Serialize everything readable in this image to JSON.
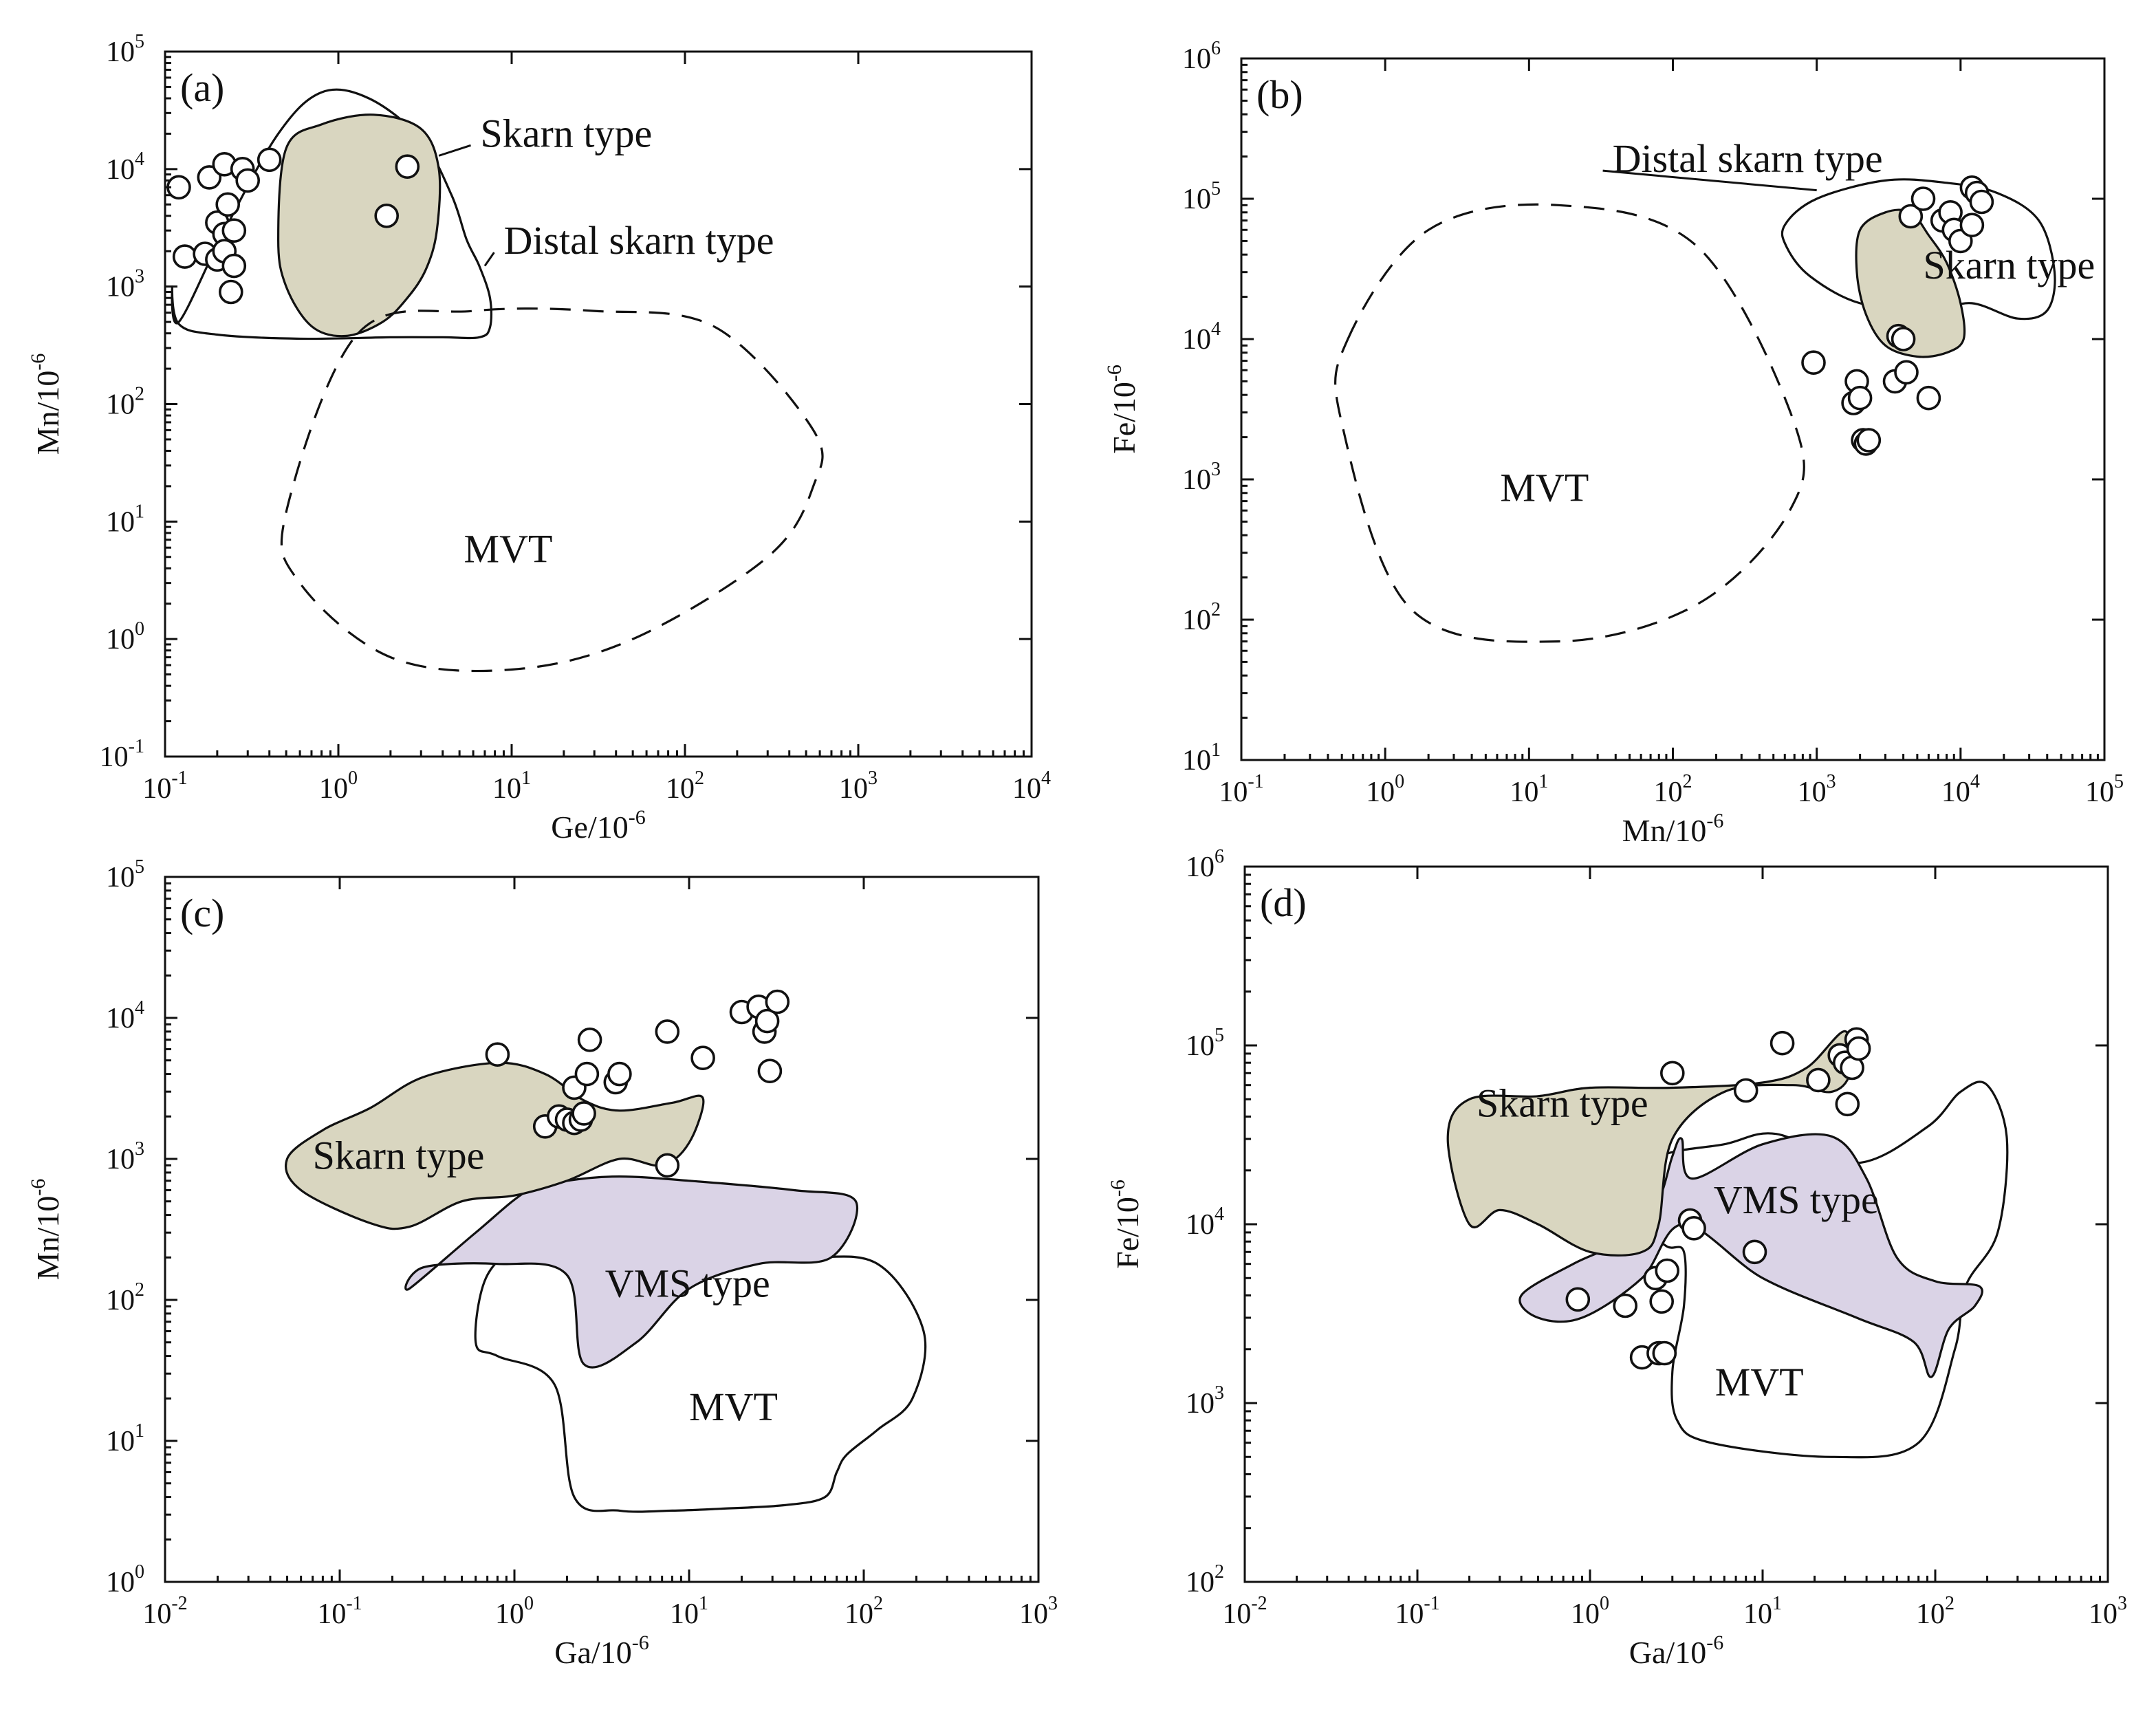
{
  "colors": {
    "skarn_fill": "#d9d6c0",
    "vms_fill": "#dad3e6",
    "line": "#111111",
    "background": "#ffffff"
  },
  "chart_data": [
    {
      "id": "a",
      "type": "scatter",
      "panel_label": "(a)",
      "xlabel": "Ge/10",
      "xlabel_exp": "-6",
      "ylabel": "Mn/10",
      "ylabel_exp": "-6",
      "xscale": "log",
      "yscale": "log",
      "xlim": [
        0.1,
        10000
      ],
      "ylim": [
        0.1,
        100000
      ],
      "x_ticks_exp": [
        -1,
        0,
        1,
        2,
        3,
        4
      ],
      "y_ticks_exp": [
        -1,
        0,
        1,
        2,
        3,
        4,
        5
      ],
      "regions": [
        {
          "name": "Distal skarn type",
          "style": "solid",
          "fill": "none",
          "x": [
            0.12,
            0.22,
            0.45,
            0.8,
            1.5,
            3,
            4.5,
            5.5,
            6.5,
            7.5,
            7.5,
            6.5,
            4,
            2,
            0.6,
            0.2,
            0.12,
            0.11,
            0.12
          ],
          "y": [
            500,
            3000,
            20000,
            45000,
            40000,
            18000,
            6000,
            2500,
            1500,
            800,
            450,
            370,
            370,
            370,
            360,
            390,
            480,
            1000,
            500
          ]
        },
        {
          "name": "Skarn type",
          "style": "solid",
          "fill": "skarn",
          "x": [
            0.5,
            0.8,
            1.6,
            3,
            3.8,
            3.7,
            3.2,
            2.5,
            1.8,
            1.1,
            0.7,
            0.5,
            0.45,
            0.5
          ],
          "y": [
            15000,
            24000,
            29000,
            22000,
            10000,
            3000,
            1400,
            800,
            500,
            380,
            460,
            1000,
            2500,
            15000
          ]
        },
        {
          "name": "MVT",
          "style": "dashed",
          "fill": "none",
          "x": [
            1.3,
            6,
            30,
            150,
            550,
            550,
            300,
            50,
            10,
            2,
            0.6,
            0.5,
            1.3
          ],
          "y": [
            400,
            620,
            620,
            450,
            60,
            20,
            5,
            1,
            0.55,
            0.7,
            3,
            12,
            400
          ]
        }
      ],
      "labels": [
        {
          "text": "Skarn type",
          "x": 6.6,
          "y": 15500,
          "leader_to": [
            3.8,
            13000
          ]
        },
        {
          "text": "Distal skarn type",
          "x": 9.0,
          "y": 1900,
          "leader_to": [
            7.0,
            1500
          ]
        },
        {
          "text": "MVT",
          "x": 5.3,
          "y": 4.5
        }
      ],
      "points": [
        [
          0.12,
          7000
        ],
        [
          0.13,
          1800
        ],
        [
          0.17,
          1900
        ],
        [
          0.18,
          8500
        ],
        [
          0.2,
          3500
        ],
        [
          0.2,
          1700
        ],
        [
          0.22,
          2800
        ],
        [
          0.22,
          11000
        ],
        [
          0.22,
          2000
        ],
        [
          0.23,
          5000
        ],
        [
          0.24,
          900
        ],
        [
          0.25,
          1500
        ],
        [
          0.25,
          3000
        ],
        [
          0.28,
          10000
        ],
        [
          0.3,
          8000
        ],
        [
          0.4,
          12000
        ],
        [
          1.9,
          4000
        ],
        [
          2.5,
          10500
        ]
      ]
    },
    {
      "id": "b",
      "type": "scatter",
      "panel_label": "(b)",
      "xlabel": "Mn/10",
      "xlabel_exp": "-6",
      "ylabel": "Fe/10",
      "ylabel_exp": "-6",
      "xscale": "log",
      "yscale": "log",
      "xlim": [
        0.1,
        100000
      ],
      "ylim": [
        10,
        1000000
      ],
      "x_ticks_exp": [
        -1,
        0,
        1,
        2,
        3,
        4,
        5
      ],
      "y_ticks_exp": [
        1,
        2,
        3,
        4,
        5,
        6
      ],
      "regions": [
        {
          "name": "Distal skarn type",
          "style": "solid",
          "fill": "none",
          "x": [
            600,
            1000,
            3000,
            8000,
            18000,
            35000,
            45000,
            40000,
            25000,
            12000,
            6000,
            2000,
            900,
            620,
            600
          ],
          "y": [
            65000,
            100000,
            135000,
            130000,
            110000,
            70000,
            30000,
            16000,
            14000,
            18000,
            16000,
            18000,
            28000,
            45000,
            65000
          ]
        },
        {
          "name": "Skarn type",
          "style": "solid",
          "fill": "skarn",
          "x": [
            2000,
            3000,
            4500,
            6000,
            8000,
            10000,
            10500,
            8000,
            5000,
            3000,
            2200,
            1900,
            2000
          ],
          "y": [
            60000,
            80000,
            80000,
            55000,
            35000,
            18000,
            10000,
            8000,
            7500,
            9000,
            15000,
            30000,
            60000
          ]
        },
        {
          "name": "MVT",
          "style": "dashed",
          "fill": "none",
          "x": [
            0.55,
            2,
            16,
            150,
            700,
            650,
            150,
            16,
            1.5,
            0.5,
            0.55
          ],
          "y": [
            10000,
            60000,
            90000,
            45000,
            2500,
            600,
            130,
            70,
            120,
            2500,
            10000
          ]
        }
      ],
      "labels": [
        {
          "text": "Distal skarn type",
          "x": 38,
          "y": 155000,
          "leader_to": [
            1000,
            115000
          ]
        },
        {
          "text": "Skarn type",
          "x": 5500,
          "y": 27000
        },
        {
          "text": "MVT",
          "x": 6.3,
          "y": 700
        }
      ],
      "points": [
        [
          950,
          6800
        ],
        [
          1800,
          3500
        ],
        [
          1900,
          5000
        ],
        [
          2000,
          3800
        ],
        [
          2100,
          1900
        ],
        [
          2200,
          1800
        ],
        [
          2300,
          1900
        ],
        [
          3500,
          5000
        ],
        [
          3700,
          10500
        ],
        [
          4000,
          10000
        ],
        [
          4200,
          5800
        ],
        [
          4500,
          75000
        ],
        [
          5500,
          100000
        ],
        [
          6000,
          3800
        ],
        [
          7500,
          70000
        ],
        [
          8500,
          80000
        ],
        [
          9000,
          60000
        ],
        [
          10000,
          50000
        ],
        [
          12000,
          65000
        ],
        [
          12000,
          120000
        ],
        [
          13000,
          110000
        ],
        [
          14000,
          95000
        ]
      ]
    },
    {
      "id": "c",
      "type": "scatter",
      "panel_label": "(c)",
      "xlabel": "Ga/10",
      "xlabel_exp": "-6",
      "ylabel": "Mn/10",
      "ylabel_exp": "-6",
      "xscale": "log",
      "yscale": "log",
      "xlim": [
        0.01,
        1000
      ],
      "ylim": [
        1,
        100000
      ],
      "x_ticks_exp": [
        -2,
        -1,
        0,
        1,
        2,
        3
      ],
      "y_ticks_exp": [
        0,
        1,
        2,
        3,
        4,
        5
      ],
      "regions": [
        {
          "name": "MVT",
          "style": "solid",
          "fill": "none",
          "x": [
            0.7,
            1.2,
            2.5,
            6,
            15,
            45,
            120,
            220,
            190,
            120,
            80,
            70,
            60,
            35,
            15,
            8,
            4,
            2.2,
            1.7,
            0.8,
            0.6,
            0.7
          ],
          "y": [
            150,
            250,
            220,
            210,
            200,
            200,
            180,
            60,
            20,
            12,
            8,
            6,
            4,
            3.5,
            3.3,
            3.2,
            3.2,
            4,
            25,
            40,
            50,
            150
          ]
        },
        {
          "name": "VMS type",
          "style": "solid",
          "fill": "vms",
          "x": [
            0.25,
            0.6,
            1.2,
            2,
            4,
            10,
            40,
            90,
            65,
            25,
            10,
            5,
            2.5,
            2,
            0.8,
            0.3,
            0.25
          ],
          "y": [
            120,
            300,
            600,
            700,
            750,
            700,
            600,
            500,
            200,
            180,
            120,
            50,
            35,
            150,
            180,
            170,
            120
          ]
        },
        {
          "name": "Skarn type",
          "style": "solid",
          "fill": "skarn",
          "x": [
            0.05,
            0.08,
            0.15,
            0.3,
            0.8,
            1.5,
            2.5,
            4,
            8,
            12,
            10,
            7,
            4,
            2,
            1,
            0.5,
            0.25,
            0.15,
            0.06,
            0.05
          ],
          "y": [
            1000,
            1600,
            2300,
            3800,
            4800,
            4000,
            2600,
            2200,
            2500,
            2700,
            1300,
            900,
            1000,
            700,
            550,
            500,
            330,
            350,
            600,
            1000
          ]
        }
      ],
      "labels": [
        {
          "text": "Skarn type",
          "x": 0.07,
          "y": 850
        },
        {
          "text": "VMS type",
          "x": 3.3,
          "y": 105
        },
        {
          "text": "MVT",
          "x": 10,
          "y": 14
        }
      ],
      "points": [
        [
          0.8,
          5500
        ],
        [
          1.5,
          1700
        ],
        [
          1.8,
          2000
        ],
        [
          2,
          1900
        ],
        [
          2.2,
          3200
        ],
        [
          2.2,
          1800
        ],
        [
          2.4,
          1900
        ],
        [
          2.5,
          2100
        ],
        [
          2.6,
          4000
        ],
        [
          2.7,
          7000
        ],
        [
          3.8,
          3500
        ],
        [
          4,
          4000
        ],
        [
          7.5,
          900
        ],
        [
          7.5,
          8000
        ],
        [
          12,
          5200
        ],
        [
          20,
          11000
        ],
        [
          25,
          12000
        ],
        [
          27,
          8000
        ],
        [
          28,
          9500
        ],
        [
          29,
          4200
        ],
        [
          32,
          13000
        ]
      ]
    },
    {
      "id": "d",
      "type": "scatter",
      "panel_label": "(d)",
      "xlabel": "Ga/10",
      "xlabel_exp": "-6",
      "ylabel": "Fe/10",
      "ylabel_exp": "-6",
      "xscale": "log",
      "yscale": "log",
      "xlim": [
        0.01,
        1000
      ],
      "ylim": [
        100,
        1000000
      ],
      "x_ticks_exp": [
        -2,
        -1,
        0,
        1,
        2,
        3
      ],
      "y_ticks_exp": [
        2,
        3,
        4,
        5,
        6
      ],
      "regions": [
        {
          "name": "MVT",
          "style": "solid",
          "fill": "none",
          "x": [
            1.1,
            2.5,
            6,
            12,
            35,
            90,
            140,
            200,
            260,
            230,
            150,
            130,
            80,
            25,
            5,
            3.2,
            3,
            3.5,
            3.5,
            2.8,
            2,
            1.2,
            1.1
          ],
          "y": [
            15000,
            24000,
            28000,
            32000,
            22000,
            35000,
            55000,
            60000,
            30000,
            9000,
            4500,
            2000,
            600,
            500,
            600,
            800,
            1500,
            3500,
            7000,
            7500,
            9500,
            13000,
            15000
          ]
        },
        {
          "name": "VMS type",
          "style": "solid",
          "fill": "vms",
          "x": [
            2.6,
            3,
            3.4,
            3.9,
            10,
            25,
            40,
            60,
            100,
            180,
            170,
            120,
            95,
            75,
            35,
            10,
            3.5,
            2,
            0.9,
            0.5,
            0.4,
            0.8,
            1.5,
            2.2,
            2.6
          ],
          "y": [
            15000,
            24000,
            30000,
            18000,
            28000,
            31000,
            18000,
            6500,
            4800,
            4500,
            3500,
            2600,
            1400,
            2200,
            3000,
            5000,
            10000,
            5000,
            3000,
            3000,
            4000,
            6000,
            8000,
            12000,
            15000
          ]
        },
        {
          "name": "Skarn type",
          "style": "solid",
          "fill": "skarn",
          "x": [
            0.2,
            0.5,
            1,
            3,
            10,
            18,
            30,
            32,
            25,
            15,
            6,
            3,
            2.5,
            2,
            1,
            0.5,
            0.3,
            0.2,
            0.15,
            0.2
          ],
          "y": [
            50000,
            52000,
            58000,
            58000,
            62000,
            75000,
            120000,
            70000,
            55000,
            60000,
            55000,
            30000,
            10000,
            7000,
            7000,
            10000,
            12000,
            10000,
            30000,
            50000
          ]
        }
      ],
      "labels": [
        {
          "text": "Skarn type",
          "x": 0.22,
          "y": 40000
        },
        {
          "text": "VMS type",
          "x": 5.2,
          "y": 11500
        },
        {
          "text": "MVT",
          "x": 5.3,
          "y": 1100
        }
      ],
      "points": [
        [
          0.85,
          3800
        ],
        [
          1.6,
          3500
        ],
        [
          2,
          1800
        ],
        [
          2.4,
          5000
        ],
        [
          2.5,
          1900
        ],
        [
          2.6,
          3700
        ],
        [
          2.7,
          1900
        ],
        [
          2.8,
          5500
        ],
        [
          3,
          70000
        ],
        [
          3.8,
          10500
        ],
        [
          4,
          9500
        ],
        [
          8,
          56000
        ],
        [
          9,
          7000
        ],
        [
          13,
          103000
        ],
        [
          21,
          64000
        ],
        [
          28,
          88000
        ],
        [
          30,
          80000
        ],
        [
          31,
          47000
        ],
        [
          33,
          75000
        ],
        [
          35,
          108000
        ],
        [
          36,
          96000
        ]
      ]
    }
  ]
}
